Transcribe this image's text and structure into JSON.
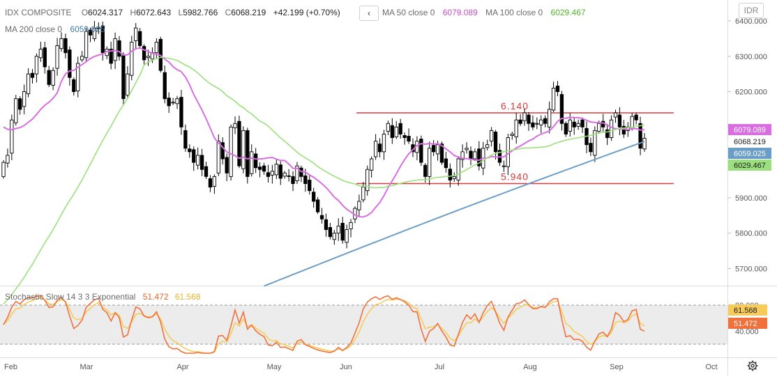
{
  "header": {
    "symbol": "IDX COMPOSITE",
    "open_label": "O",
    "open": "6024.317",
    "high_label": "H",
    "high": "6072.643",
    "low_label": "L",
    "low": "5982.766",
    "close_label": "C",
    "close": "6068.219",
    "change": "+42.199 (+0.70%)",
    "ma50_label": "MA 50 close 0",
    "ma50_value": "6079.089",
    "ma100_label": "MA 100 close 0",
    "ma100_value": "6029.467",
    "ma200_label": "MA 200 close 0",
    "ma200_value": "6059.025",
    "nav_glyph": "‹",
    "currency": "IDR"
  },
  "stoch": {
    "label": "Stochastic Slow 14 3 3 Exponential",
    "k_value": "51.472",
    "d_value": "61.568"
  },
  "colors": {
    "up": "#ffffff",
    "down": "#000000",
    "wick": "#000000",
    "ma50": "#d86ee0",
    "ma100": "#9be07e",
    "ma200": "#6b9ec7",
    "level": "#d93a3a",
    "stoch_k": "#f0713c",
    "stoch_d": "#f7cb5a"
  },
  "chart_data": [
    {
      "type": "candlestick",
      "title": "IDX COMPOSITE",
      "x_ticks": [
        "Feb",
        "Mar",
        "Apr",
        "May",
        "Jun",
        "Jul",
        "Aug",
        "Sep",
        "Oct"
      ],
      "y_ticks": [
        "6400.000",
        "6300.000",
        "6200.000",
        "6100.000",
        "6000.000",
        "5900.000",
        "5800.000",
        "5700.000"
      ],
      "ylim": [
        5680,
        6440
      ],
      "grid": false,
      "annotations": [
        {
          "text": "6.140",
          "value": 6140,
          "role": "resistance"
        },
        {
          "text": "5.940",
          "value": 5940,
          "role": "support"
        }
      ],
      "last_close": 6068.219,
      "price_labels": [
        {
          "text": "6079.089",
          "value": 6079.089,
          "series": "MA 50"
        },
        {
          "text": "6068.219",
          "value": 6068.219,
          "series": "close"
        },
        {
          "text": "6059.025",
          "value": 6059.025,
          "series": "MA 200"
        },
        {
          "text": "6029.467",
          "value": 6029.467,
          "series": "MA 100"
        }
      ],
      "close_series": [
        6000,
        6020,
        6120,
        6180,
        6150,
        6200,
        6250,
        6240,
        6300,
        6320,
        6270,
        6220,
        6260,
        6330,
        6350,
        6310,
        6240,
        6200,
        6280,
        6300,
        6370,
        6360,
        6380,
        6380,
        6310,
        6320,
        6280,
        6350,
        6300,
        6180,
        6250,
        6340,
        6380,
        6330,
        6290,
        6300,
        6310,
        6340,
        6260,
        6180,
        6160,
        6170,
        6180,
        6100,
        6040,
        6030,
        6000,
        6020,
        5980,
        5960,
        5930,
        5960,
        6060,
        6010,
        5970,
        6100,
        6110,
        5990,
        6090,
        5960,
        6030,
        5985,
        5980,
        5975,
        5960,
        5975,
        5995,
        5955,
        5970,
        5960,
        5940,
        5990,
        5960,
        5940,
        5920,
        5890,
        5860,
        5840,
        5810,
        5790,
        5800,
        5820,
        5780,
        5810,
        5830,
        5870,
        5890,
        5930,
        5980,
        6010,
        6060,
        6030,
        6080,
        6110,
        6070,
        6100,
        6080,
        6070,
        6060,
        6030,
        6060,
        6000,
        5960,
        6040,
        6030,
        6050,
        6000,
        5985,
        5950,
        5960,
        6010,
        6030,
        6040,
        6010,
        6030,
        5990,
        6040,
        6050,
        6090,
        6030,
        6000,
        5990,
        6070,
        6080,
        6120,
        6110,
        6140,
        6110,
        6100,
        6110,
        6120,
        6110,
        6150,
        6210,
        6200,
        6110,
        6080,
        6120,
        6100,
        6110,
        6100,
        6050,
        6030,
        6090,
        6110,
        6100,
        6070,
        6120,
        6140,
        6100,
        6080,
        6100,
        6130,
        6120,
        6040,
        6068
      ],
      "series": [
        {
          "name": "MA 50",
          "end_value": 6079.089
        },
        {
          "name": "MA 100",
          "end_value": 6029.467
        },
        {
          "name": "MA 200",
          "end_value": 6059.025
        }
      ]
    },
    {
      "type": "line",
      "title": "Stochastic Slow 14 3 3 Exponential",
      "y_ticks": [
        "80.000",
        "40.000"
      ],
      "dashed_levels": [
        80,
        20
      ],
      "ylim": [
        0,
        100
      ],
      "series": [
        {
          "name": "K",
          "end_value": 51.472
        },
        {
          "name": "D",
          "end_value": 61.568
        }
      ],
      "price_labels": [
        {
          "text": "61.568",
          "value": 61.568,
          "series": "D"
        },
        {
          "text": "51.472",
          "value": 51.472,
          "series": "K"
        }
      ]
    }
  ]
}
